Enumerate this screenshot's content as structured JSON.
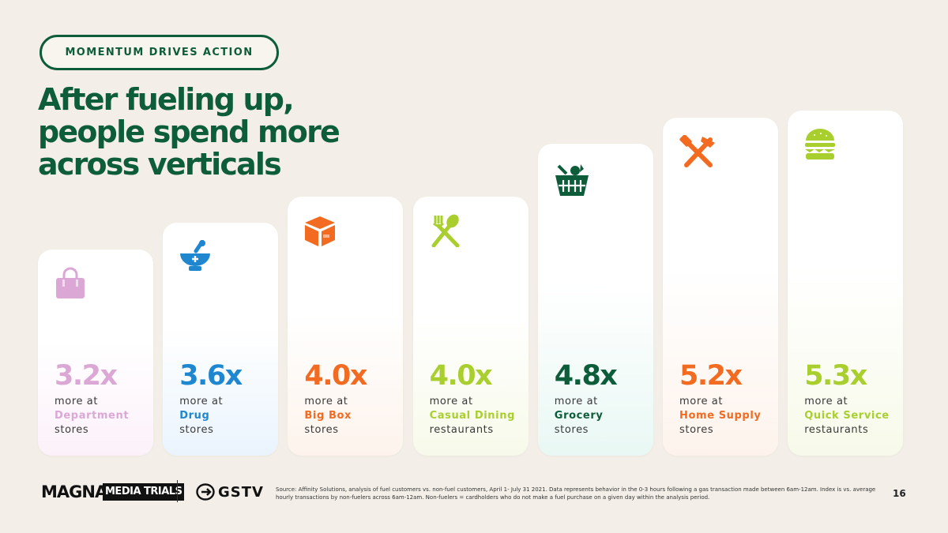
{
  "header": {
    "pill_label": "MOMENTUM DRIVES ACTION",
    "title_lines": [
      "After fueling up,",
      "people spend more",
      "across verticals"
    ]
  },
  "chart_data": {
    "type": "bar",
    "categories": [
      "Department",
      "Drug",
      "Big Box",
      "Casual Dining",
      "Grocery",
      "Home Supply",
      "Quick Service"
    ],
    "values": [
      3.2,
      3.6,
      4.0,
      4.0,
      4.8,
      5.2,
      5.3
    ],
    "value_labels": [
      "3.2x",
      "3.6x",
      "4.0x",
      "4.0x",
      "4.8x",
      "5.2x",
      "5.3x"
    ],
    "line1": [
      "more at",
      "more at",
      "more at",
      "more at",
      "more at",
      "more at",
      "more at"
    ],
    "line3": [
      "stores",
      "stores",
      "stores",
      "restaurants",
      "stores",
      "stores",
      "restaurants"
    ],
    "colors": [
      "#dba8d6",
      "#1e87d0",
      "#f26b21",
      "#a9cf2e",
      "#0d5c3a",
      "#f26b21",
      "#a9cf2e"
    ],
    "tints": [
      "#fcf1fa",
      "#eaf4fd",
      "#fdf3ec",
      "#f7faea",
      "#e9f8f4",
      "#fdf3ec",
      "#f7faea"
    ],
    "icons": [
      "shopping-bag-icon",
      "mortar-pestle-icon",
      "box-icon",
      "fork-spoon-icon",
      "basket-icon",
      "tools-icon",
      "burger-icon"
    ]
  },
  "footer": {
    "logo1": "MAGNA",
    "logo2": "MEDIA TRIALS",
    "logo3": "GSTV",
    "source": "Source: Affinity Solutions, analysis of fuel customers vs. non-fuel customers, April 1- July 31 2021. Data represents behavior in the 0-3 hours following a gas transaction made between 6am-12am. Index is vs. average hourly transactions by non-fuelers across 6am-12am. Non-fuelers = cardholders who do not make a fuel purchase on a given day within the analysis period.",
    "page_number": "16"
  }
}
